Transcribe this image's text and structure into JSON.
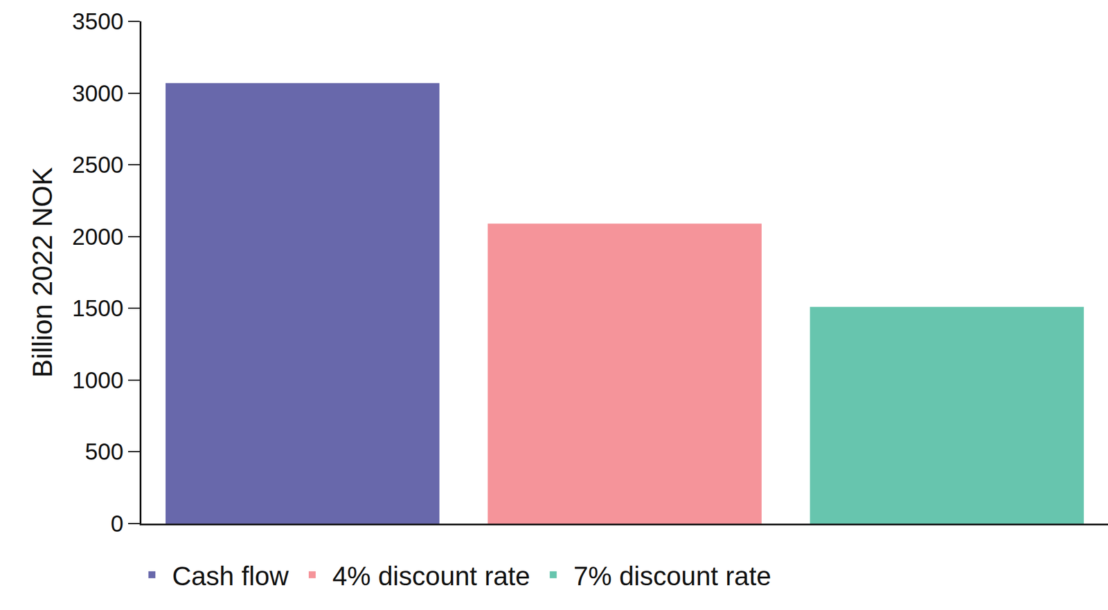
{
  "chart_data": {
    "type": "bar",
    "y_label": "Billion 2022 NOK",
    "categories": [
      "Cash flow",
      "4% discount rate",
      "7% discount rate"
    ],
    "values": [
      3070,
      2090,
      1510
    ],
    "colors": [
      "#6868ab",
      "#f5949a",
      "#67c5ae"
    ],
    "ylim": [
      0,
      3500
    ],
    "yticks": [
      0,
      500,
      1000,
      1500,
      2000,
      2500,
      3000,
      3500
    ],
    "grid": false,
    "legend": "bottom",
    "tick_labels": "y"
  }
}
